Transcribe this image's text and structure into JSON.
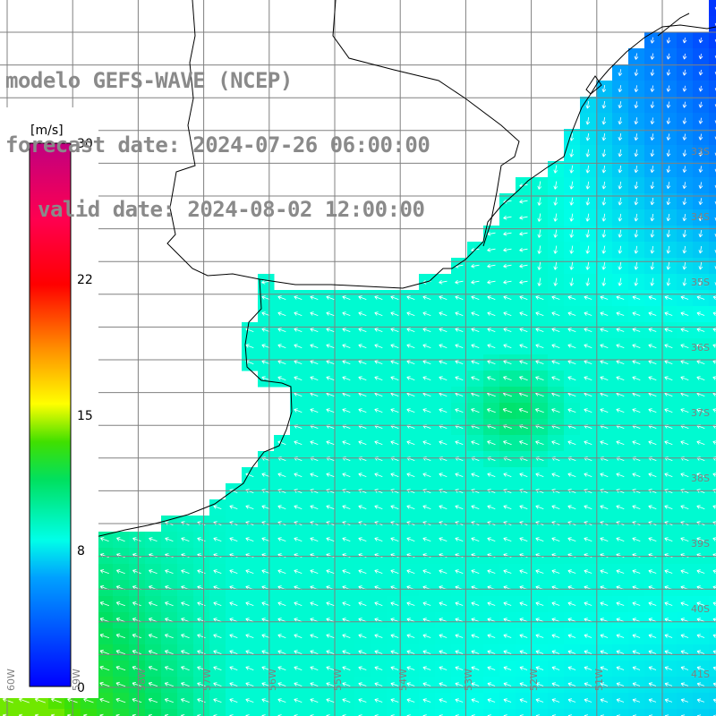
{
  "header": {
    "model": "modelo GEFS-WAVE (NCEP)",
    "forecast": "forecast date: 2024-07-26 06:00:00",
    "valid": "valid date: 2024-08-02 12:00:00"
  },
  "colorbar": {
    "unit": "[m/s]",
    "ticks": [
      "30",
      "22",
      "15",
      "8",
      "0"
    ],
    "colors": [
      "#0000ff",
      "#0040ff",
      "#0090ff",
      "#00d0ff",
      "#00ffe8",
      "#00ff90",
      "#00e000",
      "#80ff00",
      "#ffff00",
      "#ff9000",
      "#ff2000",
      "#ff0040",
      "#c00080"
    ]
  },
  "grid": {
    "lat_labels": [
      "33S",
      "34S",
      "35S",
      "36S",
      "37S",
      "38S",
      "39S",
      "40S",
      "41S"
    ],
    "lon_labels": [
      "60W",
      "59W",
      "58W",
      "57W",
      "56W",
      "55W",
      "54W",
      "53W",
      "52W",
      "51W"
    ]
  },
  "map_data": {
    "variable": "wind speed",
    "unit": "m/s",
    "range": [
      0,
      30
    ],
    "coastline_color": "#000000",
    "grid_color": "#808080"
  }
}
